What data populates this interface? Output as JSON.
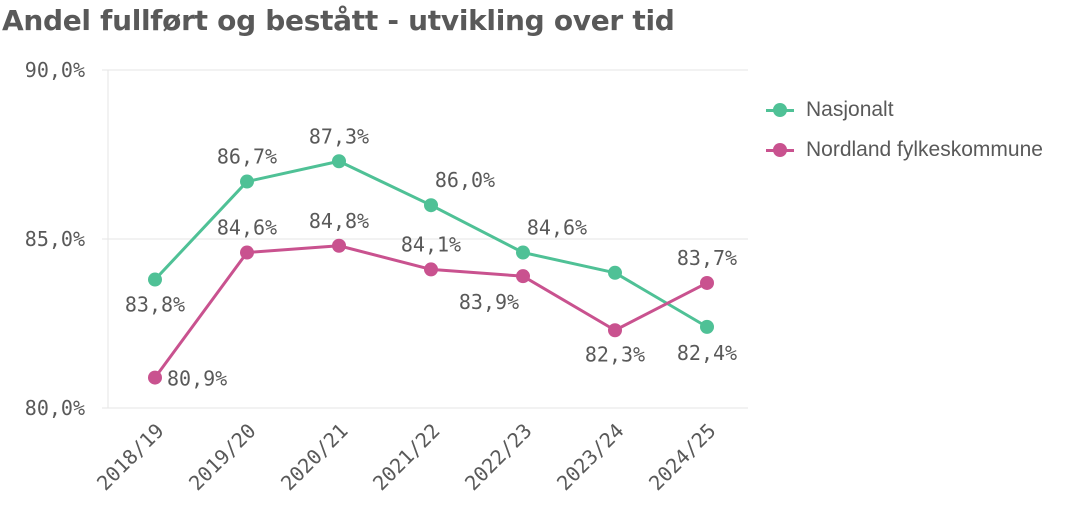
{
  "colors": {
    "nasjonalt": "#4fc196",
    "nordland": "#c9528f",
    "axis_text": "#595959",
    "grid": "#e6e6e6"
  },
  "chart_data": {
    "type": "line",
    "title": "Andel fullført og bestått - utvikling over tid",
    "categories": [
      "2018/19",
      "2019/20",
      "2020/21",
      "2021/22",
      "2022/23",
      "2023/24",
      "2024/25"
    ],
    "ylim": [
      80,
      90
    ],
    "yticks": [
      80,
      85,
      90
    ],
    "ytick_labels": [
      "80,0%",
      "85,0%",
      "90,0%"
    ],
    "grid": true,
    "legend_position": "right",
    "series": [
      {
        "name": "Nasjonalt",
        "color": "#4fc196",
        "values": [
          83.8,
          86.7,
          87.3,
          86.0,
          84.6,
          84.0,
          82.4
        ],
        "labels": [
          "83,8%",
          "86,7%",
          "87,3%",
          "86,0%",
          "84,6%",
          null,
          "82,4%"
        ]
      },
      {
        "name": "Nordland fylkeskommune",
        "color": "#c9528f",
        "values": [
          80.9,
          84.6,
          84.8,
          84.1,
          83.9,
          82.3,
          83.7
        ],
        "labels": [
          "80,9%",
          "84,6%",
          "84,8%",
          "84,1%",
          "83,9%",
          "82,3%",
          "83,7%"
        ]
      }
    ]
  }
}
